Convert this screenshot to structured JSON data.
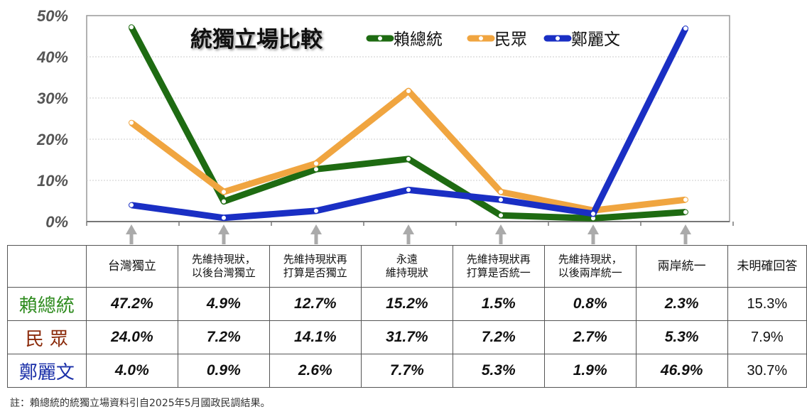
{
  "chart_data": {
    "type": "line",
    "title": "統獨立場比較",
    "ylim": [
      0,
      50
    ],
    "yticks": [
      "0%",
      "10%",
      "20%",
      "30%",
      "40%",
      "50%"
    ],
    "ytick_values": [
      0,
      10,
      20,
      30,
      40,
      50
    ],
    "grid": true,
    "legend_position": "top",
    "categories": [
      "台灣獨立",
      "先維持現狀，以後台灣獨立",
      "先維持現狀再打算是否獨立",
      "永遠維持現狀",
      "先維持現狀再打算是否統一",
      "先維持現狀，以後兩岸統一",
      "兩岸統一"
    ],
    "series": [
      {
        "name": "賴總統",
        "color": "#1e6b12",
        "values": [
          47.2,
          4.9,
          12.7,
          15.2,
          1.5,
          0.8,
          2.3
        ]
      },
      {
        "name": "民眾",
        "color": "#f0a540",
        "values": [
          24.0,
          7.2,
          14.1,
          31.7,
          7.2,
          2.7,
          5.3
        ]
      },
      {
        "name": "鄭麗文",
        "color": "#1a2fc4",
        "values": [
          4.0,
          0.9,
          2.6,
          7.7,
          5.3,
          1.9,
          46.9
        ]
      }
    ]
  },
  "table": {
    "headers": [
      [
        "台灣獨立"
      ],
      [
        "先維持現狀，",
        "以後台灣獨立"
      ],
      [
        "先維持現狀再",
        "打算是否獨立"
      ],
      [
        "永遠",
        "維持現狀"
      ],
      [
        "先維持現狀再",
        "打算是否統一"
      ],
      [
        "先維持現狀，",
        "以後兩岸統一"
      ],
      [
        "兩岸統一"
      ],
      [
        "未明確回答"
      ]
    ],
    "rows": [
      {
        "name": "賴總統",
        "color": "#2e8b1e",
        "values": [
          "47.2%",
          "4.9%",
          "12.7%",
          "15.2%",
          "1.5%",
          "0.8%",
          "2.3%",
          "15.3%"
        ]
      },
      {
        "name": "民 眾",
        "color": "#8b2a0a",
        "values": [
          "24.0%",
          "7.2%",
          "14.1%",
          "31.7%",
          "7.2%",
          "2.7%",
          "5.3%",
          "7.9%"
        ]
      },
      {
        "name": "鄭麗文",
        "color": "#1a2fa8",
        "values": [
          "4.0%",
          "0.9%",
          "2.6%",
          "7.7%",
          "5.3%",
          "1.9%",
          "46.9%",
          "30.7%"
        ]
      }
    ]
  },
  "footnote": "註：賴總統的統獨立場資料引自2025年5月國政民調結果。"
}
